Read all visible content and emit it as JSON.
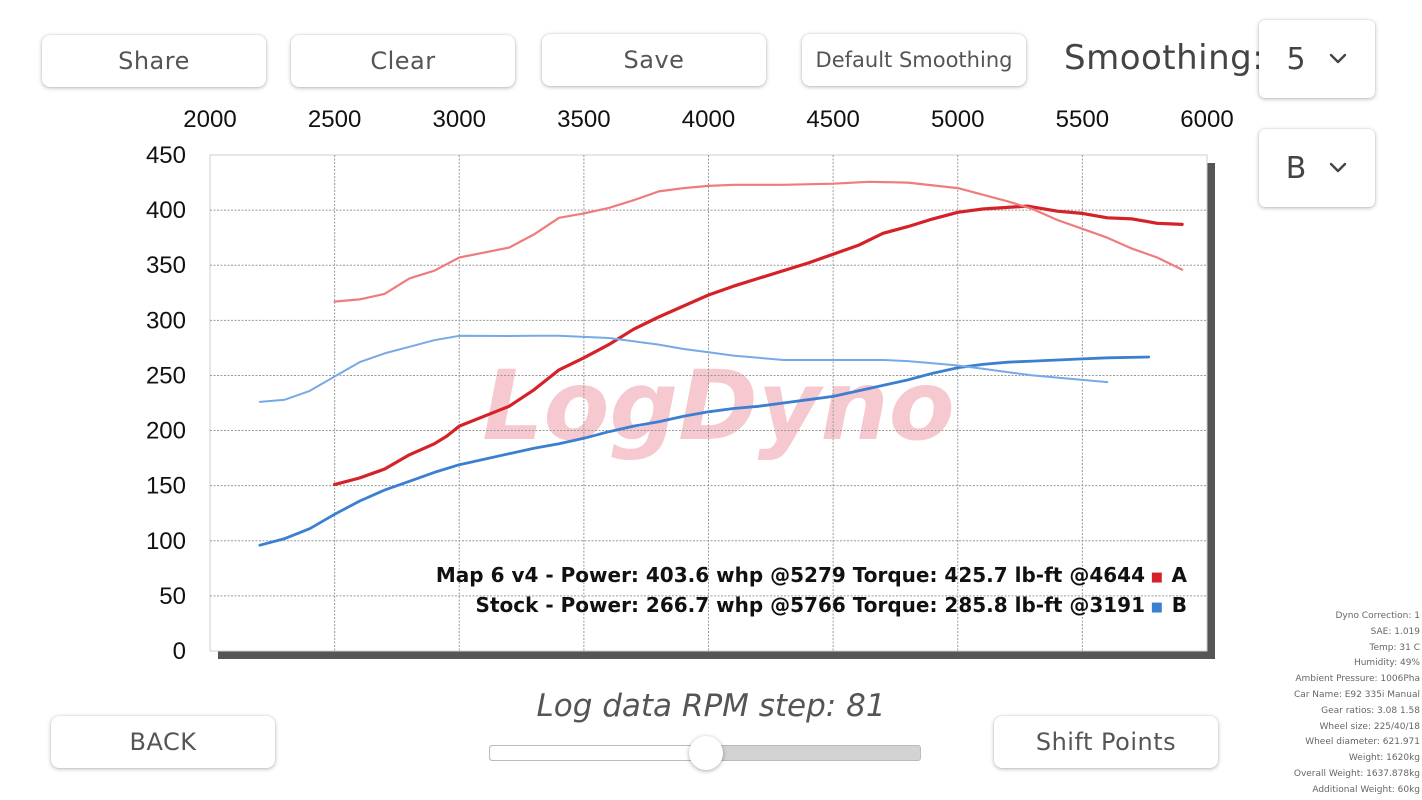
{
  "toolbar": {
    "share_label": "Share",
    "clear_label": "Clear",
    "save_label": "Save",
    "default_smoothing_label": "Default Smoothing",
    "smoothing_label": "Smoothing:",
    "smoothing_value": "5",
    "run_value": "B"
  },
  "bottom": {
    "back_label": "BACK",
    "shift_points_label": "Shift Points",
    "rpm_step_label": "Log data RPM step: 81",
    "rpm_step_slider_fraction": 0.5
  },
  "colors": {
    "run_a_power": "#d42228",
    "run_a_torque": "#ef7c7c",
    "run_b_power": "#3b7fd1",
    "run_b_torque": "#76a9e6",
    "watermark": "#f4b6c0"
  },
  "watermark_text": "LogDyno",
  "chart_data": {
    "type": "line",
    "title": "",
    "xlabel": "",
    "ylabel": "",
    "xlim": [
      2000,
      6000
    ],
    "ylim": [
      0,
      450
    ],
    "x_ticks": [
      2000,
      2500,
      3000,
      3500,
      4000,
      4500,
      5000,
      5500,
      6000
    ],
    "y_ticks": [
      0,
      50,
      100,
      150,
      200,
      250,
      300,
      350,
      400,
      450
    ],
    "grid": true,
    "legend": {
      "placement": "bottom-right",
      "entries": [
        {
          "text": "Map 6 v4 - Power: 403.6 whp @5279 Torque: 425.7 lb-ft @4644",
          "swatch": "■",
          "tag": "A",
          "color": "#d42228"
        },
        {
          "text": "Stock - Power: 266.7 whp @5766 Torque: 285.8 lb-ft @3191",
          "swatch": "■",
          "tag": "B",
          "color": "#3b7fd1"
        }
      ]
    },
    "series": [
      {
        "key": "A-power",
        "color": "#d42228",
        "width": 3.2,
        "points": [
          [
            2500,
            151
          ],
          [
            2600,
            157
          ],
          [
            2700,
            165
          ],
          [
            2800,
            178
          ],
          [
            2900,
            188
          ],
          [
            2950,
            195
          ],
          [
            3000,
            204
          ],
          [
            3200,
            222
          ],
          [
            3300,
            237
          ],
          [
            3400,
            255
          ],
          [
            3500,
            266
          ],
          [
            3600,
            278
          ],
          [
            3700,
            292
          ],
          [
            3800,
            303
          ],
          [
            3900,
            313
          ],
          [
            4000,
            323
          ],
          [
            4100,
            331
          ],
          [
            4200,
            338
          ],
          [
            4400,
            352
          ],
          [
            4500,
            360
          ],
          [
            4600,
            368
          ],
          [
            4700,
            379
          ],
          [
            4800,
            385
          ],
          [
            4900,
            392
          ],
          [
            5000,
            398
          ],
          [
            5100,
            401
          ],
          [
            5279,
            403.6
          ],
          [
            5400,
            399
          ],
          [
            5500,
            397
          ],
          [
            5600,
            393
          ],
          [
            5700,
            392
          ],
          [
            5800,
            388
          ],
          [
            5900,
            387
          ]
        ]
      },
      {
        "key": "A-torque",
        "color": "#ef7c7c",
        "width": 2.2,
        "points": [
          [
            2500,
            317
          ],
          [
            2600,
            319
          ],
          [
            2700,
            324
          ],
          [
            2800,
            338
          ],
          [
            2900,
            345
          ],
          [
            3000,
            357
          ],
          [
            3200,
            366
          ],
          [
            3300,
            378
          ],
          [
            3400,
            393
          ],
          [
            3500,
            397
          ],
          [
            3600,
            402
          ],
          [
            3700,
            409
          ],
          [
            3800,
            417
          ],
          [
            3900,
            420
          ],
          [
            4000,
            422
          ],
          [
            4100,
            423
          ],
          [
            4300,
            423
          ],
          [
            4500,
            424
          ],
          [
            4644,
            425.7
          ],
          [
            4800,
            425
          ],
          [
            5000,
            420
          ],
          [
            5100,
            414
          ],
          [
            5200,
            408
          ],
          [
            5300,
            401
          ],
          [
            5400,
            391
          ],
          [
            5500,
            383
          ],
          [
            5600,
            375
          ],
          [
            5700,
            365
          ],
          [
            5800,
            357
          ],
          [
            5900,
            346
          ]
        ]
      },
      {
        "key": "B-power",
        "color": "#3b7fd1",
        "width": 2.8,
        "points": [
          [
            2200,
            96
          ],
          [
            2300,
            102
          ],
          [
            2400,
            111
          ],
          [
            2500,
            124
          ],
          [
            2600,
            136
          ],
          [
            2700,
            146
          ],
          [
            2800,
            154
          ],
          [
            2900,
            162
          ],
          [
            3000,
            169
          ],
          [
            3100,
            174
          ],
          [
            3200,
            179
          ],
          [
            3300,
            184
          ],
          [
            3400,
            188
          ],
          [
            3500,
            193
          ],
          [
            3600,
            199
          ],
          [
            3700,
            204
          ],
          [
            3800,
            208
          ],
          [
            3900,
            213
          ],
          [
            4000,
            217
          ],
          [
            4100,
            220
          ],
          [
            4200,
            222
          ],
          [
            4300,
            225
          ],
          [
            4400,
            228
          ],
          [
            4500,
            231
          ],
          [
            4600,
            236
          ],
          [
            4700,
            241
          ],
          [
            4800,
            246
          ],
          [
            4900,
            252
          ],
          [
            5000,
            257
          ],
          [
            5100,
            260
          ],
          [
            5200,
            262
          ],
          [
            5300,
            263
          ],
          [
            5400,
            264
          ],
          [
            5500,
            265
          ],
          [
            5600,
            266
          ],
          [
            5766,
            266.7
          ]
        ]
      },
      {
        "key": "B-torque",
        "color": "#76a9e6",
        "width": 2.0,
        "points": [
          [
            2200,
            226
          ],
          [
            2300,
            228
          ],
          [
            2400,
            236
          ],
          [
            2500,
            249
          ],
          [
            2600,
            262
          ],
          [
            2700,
            270
          ],
          [
            2800,
            276
          ],
          [
            2900,
            282
          ],
          [
            3000,
            286
          ],
          [
            3191,
            285.8
          ],
          [
            3300,
            286
          ],
          [
            3400,
            286
          ],
          [
            3500,
            285
          ],
          [
            3600,
            284
          ],
          [
            3700,
            281
          ],
          [
            3800,
            278
          ],
          [
            3900,
            274
          ],
          [
            4000,
            271
          ],
          [
            4100,
            268
          ],
          [
            4200,
            266
          ],
          [
            4300,
            264
          ],
          [
            4400,
            264
          ],
          [
            4500,
            264
          ],
          [
            4600,
            264
          ],
          [
            4700,
            264
          ],
          [
            4800,
            263
          ],
          [
            4900,
            261
          ],
          [
            5000,
            259
          ],
          [
            5100,
            256
          ],
          [
            5200,
            253
          ],
          [
            5300,
            250
          ],
          [
            5400,
            248
          ],
          [
            5500,
            246
          ],
          [
            5600,
            244
          ]
        ]
      }
    ]
  },
  "dyno_info": [
    "Dyno Correction: 1",
    "SAE: 1.019",
    "Temp: 31 C",
    "Humidity: 49%",
    "Ambient Pressure: 1006Pha",
    "Car Name: E92 335i Manual",
    "Gear ratios: 3.08 1.58",
    "Wheel size: 225/40/18",
    "Wheel diameter: 621.971",
    "Weight: 1620kg",
    "Overall Weight: 1637.878kg",
    "Additional Weight: 60kg"
  ]
}
